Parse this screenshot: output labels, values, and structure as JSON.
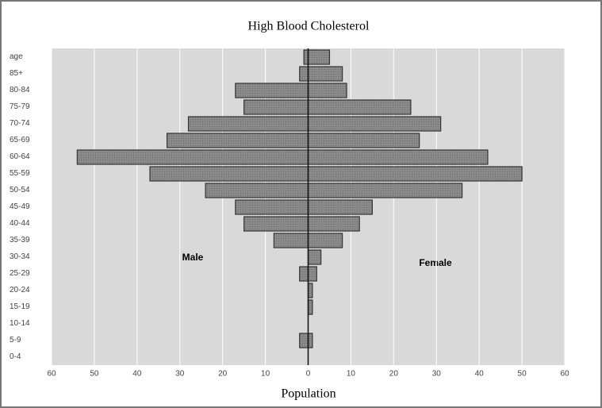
{
  "chart_data": {
    "type": "bar",
    "orientation": "horizontal",
    "title": "High Blood Cholesterol",
    "xlabel": "Population",
    "categories": [
      "age",
      "85+",
      "80-84",
      "75-79",
      "70-74",
      "65-69",
      "60-64",
      "55-59",
      "50-54",
      "45-49",
      "40-44",
      "35-39",
      "30-34",
      "25-29",
      "20-24",
      "15-19",
      "10-14",
      "5-9",
      "0-4"
    ],
    "series": [
      {
        "name": "Male",
        "color": "#7f7f7f",
        "side": "left",
        "values": [
          1,
          2,
          17,
          15,
          28,
          33,
          54,
          37,
          24,
          17,
          15,
          8,
          0,
          2,
          0,
          0,
          0,
          2,
          0
        ]
      },
      {
        "name": "Female",
        "color": "#7f7f7f",
        "side": "right",
        "values": [
          5,
          8,
          9,
          24,
          31,
          26,
          42,
          50,
          36,
          15,
          12,
          8,
          3,
          2,
          1,
          1,
          0,
          1,
          0
        ]
      }
    ],
    "xlim": [
      -60,
      60
    ],
    "xticks": [
      {
        "value": -60,
        "label": "60"
      },
      {
        "value": -50,
        "label": "50"
      },
      {
        "value": -40,
        "label": "40"
      },
      {
        "value": -30,
        "label": "30"
      },
      {
        "value": -20,
        "label": "20"
      },
      {
        "value": -10,
        "label": "10"
      },
      0,
      10,
      20,
      30,
      40,
      50,
      60
    ],
    "grid": true
  }
}
